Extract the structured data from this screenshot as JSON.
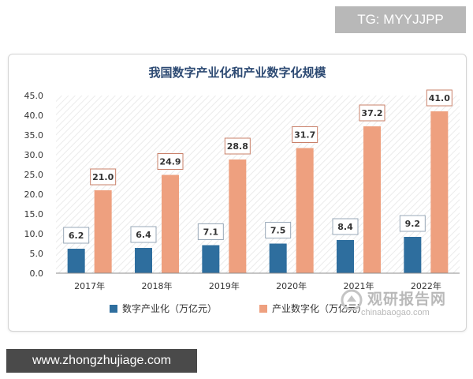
{
  "watermark_tg": "TG: MYYJJPP",
  "watermark_site": "www.zhongzhujiage.com",
  "watermark_logo": {
    "cn": "观研报告网",
    "en": "chinabaogao.com"
  },
  "colors": {
    "series1": "#2e6e9e",
    "series2": "#eea07f",
    "title": "#2d4a73",
    "label_border": "#c9806a"
  },
  "chart_data": {
    "type": "bar",
    "title": "我国数字产业化和产业数字化规模",
    "categories": [
      "2017年",
      "2018年",
      "2019年",
      "2020年",
      "2021年",
      "2022年"
    ],
    "series": [
      {
        "name": "数字产业化（万亿元）",
        "values": [
          6.2,
          6.4,
          7.1,
          7.5,
          8.4,
          9.2
        ]
      },
      {
        "name": "产业数字化（万亿元）",
        "values": [
          21.0,
          24.9,
          28.8,
          31.7,
          37.2,
          41.0
        ]
      }
    ],
    "ylim": [
      0,
      45
    ],
    "yticks": [
      "0.0",
      "5.0",
      "10.0",
      "15.0",
      "20.0",
      "25.0",
      "30.0",
      "35.0",
      "40.0",
      "45.0"
    ],
    "value_labels": [
      [
        "6.2",
        "6.4",
        "7.1",
        "7.5",
        "8.4",
        "9.2"
      ],
      [
        "21.0",
        "24.9",
        "28.8",
        "31.7",
        "37.2",
        "41.0"
      ]
    ],
    "legend_position": "bottom-left",
    "grid": false
  }
}
